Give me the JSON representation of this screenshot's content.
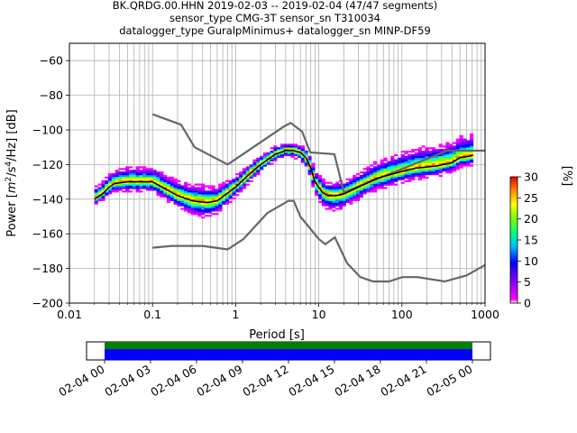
{
  "chart_data": {
    "type": "heatmap",
    "title_lines": [
      "BK.QRDG.00.HHN   2019-02-03 -- 2019-02-04  (47/47 segments)",
      "sensor_type CMG-3T sensor_sn T310034",
      "datalogger_type GuralpMinimus+ datalogger_sn MINP-DF59"
    ],
    "xlabel": "Period [s]",
    "ylabel_prefix": "Power [",
    "ylabel_m": "m",
    "ylabel_sup2": "2",
    "ylabel_mid": "/s",
    "ylabel_sup4": "4",
    "ylabel_suffix": "/Hz] [dB]",
    "x_scale": "log",
    "xlim": [
      0.01,
      1000
    ],
    "ylim": [
      -200,
      -50
    ],
    "x_ticks": [
      {
        "value": 0.01,
        "label": "0.01"
      },
      {
        "value": 0.1,
        "label": "0.1"
      },
      {
        "value": 1,
        "label": "1"
      },
      {
        "value": 10,
        "label": "10"
      },
      {
        "value": 100,
        "label": "100"
      },
      {
        "value": 1000,
        "label": "1000"
      }
    ],
    "y_ticks": [
      {
        "value": -60,
        "label": "−60"
      },
      {
        "value": -80,
        "label": "−80"
      },
      {
        "value": -100,
        "label": "−100"
      },
      {
        "value": -120,
        "label": "−120"
      },
      {
        "value": -140,
        "label": "−140"
      },
      {
        "value": -160,
        "label": "−160"
      },
      {
        "value": -180,
        "label": "−180"
      },
      {
        "value": -200,
        "label": "−200"
      }
    ],
    "grid": true,
    "colorbar": {
      "label": "[%]",
      "range": [
        0,
        30
      ],
      "ticks": [
        {
          "value": 0,
          "label": "0"
        },
        {
          "value": 5,
          "label": "5"
        },
        {
          "value": 10,
          "label": "10"
        },
        {
          "value": 15,
          "label": "15"
        },
        {
          "value": 20,
          "label": "20"
        },
        {
          "value": 25,
          "label": "25"
        },
        {
          "value": 30,
          "label": "30"
        }
      ]
    },
    "noise_model_high": [
      [
        0.1,
        -91
      ],
      [
        0.22,
        -97
      ],
      [
        0.32,
        -110
      ],
      [
        0.8,
        -120
      ],
      [
        3.8,
        -98
      ],
      [
        4.6,
        -96
      ],
      [
        6.3,
        -101
      ],
      [
        7.9,
        -113
      ],
      [
        15.4,
        -114
      ],
      [
        20,
        -136
      ],
      [
        354,
        -112
      ],
      [
        1000,
        -112
      ]
    ],
    "noise_model_low": [
      [
        0.1,
        -168
      ],
      [
        0.17,
        -167
      ],
      [
        0.4,
        -167
      ],
      [
        0.8,
        -169
      ],
      [
        1.24,
        -163
      ],
      [
        2.4,
        -148
      ],
      [
        4.3,
        -141
      ],
      [
        5,
        -141
      ],
      [
        6,
        -150
      ],
      [
        10,
        -163
      ],
      [
        12,
        -166
      ],
      [
        15.6,
        -162
      ],
      [
        21.9,
        -177
      ],
      [
        31.6,
        -185
      ],
      [
        45,
        -187.5
      ],
      [
        70,
        -187.5
      ],
      [
        101,
        -185
      ],
      [
        154,
        -185
      ],
      [
        328,
        -187.5
      ],
      [
        600,
        -184
      ],
      [
        1000,
        -178
      ]
    ],
    "mean_psd": [
      [
        0.02,
        -140
      ],
      [
        0.025,
        -137
      ],
      [
        0.03,
        -133
      ],
      [
        0.035,
        -131
      ],
      [
        0.05,
        -130
      ],
      [
        0.07,
        -130
      ],
      [
        0.1,
        -130
      ],
      [
        0.13,
        -133
      ],
      [
        0.2,
        -138
      ],
      [
        0.3,
        -141
      ],
      [
        0.45,
        -142
      ],
      [
        0.6,
        -141
      ],
      [
        1,
        -133
      ],
      [
        1.5,
        -125
      ],
      [
        2,
        -120
      ],
      [
        3,
        -114
      ],
      [
        4,
        -112
      ],
      [
        5,
        -112
      ],
      [
        6,
        -113
      ],
      [
        7,
        -116
      ],
      [
        8,
        -122
      ],
      [
        9,
        -130
      ],
      [
        11,
        -136
      ],
      [
        13,
        -138
      ],
      [
        16,
        -138
      ],
      [
        20,
        -137
      ],
      [
        30,
        -133
      ],
      [
        50,
        -128
      ],
      [
        70,
        -126
      ],
      [
        100,
        -124
      ],
      [
        150,
        -122
      ],
      [
        250,
        -121
      ],
      [
        400,
        -119
      ],
      [
        500,
        -116
      ],
      [
        700,
        -115
      ]
    ],
    "psd_spread": [
      [
        0.02,
        5,
        3
      ],
      [
        0.03,
        6,
        4
      ],
      [
        0.05,
        7,
        5
      ],
      [
        0.1,
        7,
        5
      ],
      [
        0.2,
        7,
        6
      ],
      [
        0.4,
        8,
        8
      ],
      [
        1,
        5,
        5
      ],
      [
        2,
        4,
        4
      ],
      [
        4,
        3,
        3
      ],
      [
        6,
        3,
        4
      ],
      [
        8,
        5,
        6
      ],
      [
        10,
        6,
        7
      ],
      [
        15,
        6,
        8
      ],
      [
        25,
        6,
        7
      ],
      [
        50,
        8,
        6
      ],
      [
        100,
        9,
        6
      ],
      [
        200,
        10,
        6
      ],
      [
        400,
        10,
        5
      ],
      [
        700,
        10,
        5
      ]
    ],
    "timeline": {
      "start_label": "02-04 00",
      "end_label": "02-05 00",
      "ticks": [
        "02-04 00",
        "02-04 03",
        "02-04 06",
        "02-04 09",
        "02-04 12",
        "02-04 15",
        "02-04 18",
        "02-04 21",
        "02-05 00"
      ],
      "coverage": [
        {
          "from_hour": 0,
          "to_hour": 24,
          "color": "#008000"
        },
        {
          "from_hour": 0,
          "to_hour": 24,
          "color": "#0000ff"
        }
      ]
    }
  }
}
